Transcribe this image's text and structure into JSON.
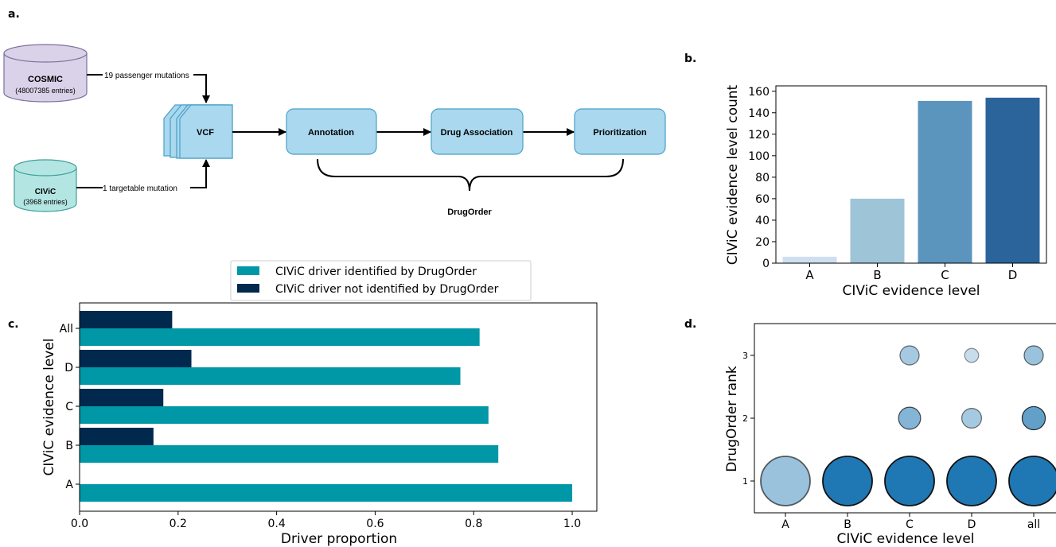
{
  "panel_labels": {
    "a": "a.",
    "b": "b.",
    "c": "c.",
    "d": "d."
  },
  "diagram": {
    "cosmic": {
      "name": "COSMIC",
      "sub": "(48007385 entries)"
    },
    "civic": {
      "name": "CIViC",
      "sub": "(3968 entries)"
    },
    "edge_cosmic": "19 passenger mutations",
    "edge_civic": "1 targetable mutation",
    "vcf": "VCF",
    "steps": [
      "Annotation",
      "Drug Association",
      "Prioritization"
    ],
    "brace_label": "DrugOrder",
    "colors": {
      "cosmic_fill": "#d9d2e9",
      "civic_fill": "#b3e6e2",
      "box_fill": "#a9d8ef",
      "box_stroke": "#4aa0c6"
    }
  },
  "chart_data": [
    {
      "id": "b",
      "type": "bar",
      "categories": [
        "A",
        "B",
        "C",
        "D"
      ],
      "values": [
        6,
        60,
        151,
        154
      ],
      "colors": [
        "#cfdff0",
        "#9ec4d8",
        "#5b94bd",
        "#2b639b"
      ],
      "xlabel": "CIViC evidence level",
      "ylabel": "CIViC evidence level count",
      "ylim": [
        0,
        165
      ],
      "yticks": [
        0,
        20,
        40,
        60,
        80,
        100,
        120,
        140,
        160
      ]
    },
    {
      "id": "c",
      "type": "bar",
      "orientation": "horizontal",
      "categories": [
        "A",
        "B",
        "C",
        "D",
        "All"
      ],
      "series": [
        {
          "name": "CIViC driver identified by DrugOrder",
          "color": "#0097a7",
          "values": [
            1.0,
            0.85,
            0.83,
            0.773,
            0.812
          ]
        },
        {
          "name": "CIViC driver not identified by DrugOrder",
          "color": "#00294d",
          "values": [
            0,
            0.15,
            0.17,
            0.227,
            0.188
          ]
        }
      ],
      "xlabel": "Driver proportion",
      "ylabel": "CIViC evidence level",
      "xlim": [
        0,
        1.05
      ],
      "xticks": [
        "0.0",
        "0.2",
        "0.4",
        "0.6",
        "0.8",
        "1.0"
      ],
      "legend": "top-center"
    },
    {
      "id": "d",
      "type": "scatter",
      "categories": [
        "A",
        "B",
        "C",
        "D",
        "all"
      ],
      "yticks": [
        1,
        2,
        3
      ],
      "points": [
        {
          "x": "A",
          "y": 1,
          "size": 1.0,
          "alpha": 0.45
        },
        {
          "x": "B",
          "y": 1,
          "size": 1.0,
          "alpha": 1.0
        },
        {
          "x": "C",
          "y": 1,
          "size": 1.0,
          "alpha": 1.0
        },
        {
          "x": "D",
          "y": 1,
          "size": 1.0,
          "alpha": 1.0
        },
        {
          "x": "all",
          "y": 1,
          "size": 1.0,
          "alpha": 1.0
        },
        {
          "x": "C",
          "y": 2,
          "size": 0.2,
          "alpha": 0.55
        },
        {
          "x": "D",
          "y": 2,
          "size": 0.16,
          "alpha": 0.4
        },
        {
          "x": "all",
          "y": 2,
          "size": 0.22,
          "alpha": 0.7
        },
        {
          "x": "C",
          "y": 3,
          "size": 0.15,
          "alpha": 0.4
        },
        {
          "x": "D",
          "y": 3,
          "size": 0.08,
          "alpha": 0.25
        },
        {
          "x": "all",
          "y": 3,
          "size": 0.15,
          "alpha": 0.45
        }
      ],
      "color": "#1f77b4",
      "xlabel": "CIViC evidence level",
      "ylabel": "DrugOrder rank"
    }
  ]
}
